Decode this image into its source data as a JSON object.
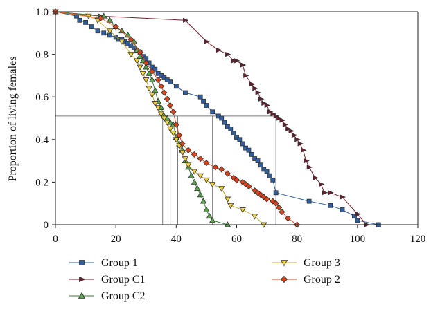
{
  "chart_data": {
    "type": "line",
    "title": "",
    "xlabel": "",
    "ylabel": "Proportion of living females",
    "xlim": [
      0,
      120
    ],
    "ylim": [
      0,
      1.0
    ],
    "x_ticks": [
      "0",
      "20",
      "40",
      "60",
      "80",
      "100",
      "120"
    ],
    "y_ticks": [
      "0",
      "0.2",
      "0.4",
      "0.6",
      "0.8",
      "1.0"
    ],
    "grid": false,
    "legend_placement": "bottom",
    "median_reference": {
      "y": 0.51,
      "x_values": [
        35.5,
        38,
        40.5,
        52,
        73
      ]
    },
    "series": [
      {
        "name": "Group 1",
        "marker": "square",
        "line_color": "#2f5f9e",
        "marker_color": "#2f5f9e",
        "x": [
          0,
          7,
          8,
          10,
          12,
          14,
          16,
          18,
          20,
          21,
          22,
          23,
          24,
          25,
          26,
          27,
          28,
          29,
          30,
          31,
          32,
          33,
          34,
          35,
          36,
          37,
          38,
          40,
          43,
          48,
          49,
          50,
          52,
          54,
          55,
          56,
          57,
          58,
          59,
          60,
          61,
          62,
          63,
          64,
          65,
          66,
          67,
          68,
          69,
          70,
          71,
          72,
          73,
          84,
          91,
          95,
          99,
          100,
          107
        ],
        "y": [
          1.0,
          0.98,
          0.96,
          0.95,
          0.93,
          0.91,
          0.9,
          0.89,
          0.88,
          0.87,
          0.87,
          0.86,
          0.85,
          0.84,
          0.83,
          0.82,
          0.81,
          0.79,
          0.78,
          0.76,
          0.74,
          0.73,
          0.71,
          0.7,
          0.69,
          0.68,
          0.67,
          0.65,
          0.62,
          0.6,
          0.58,
          0.56,
          0.53,
          0.51,
          0.5,
          0.48,
          0.46,
          0.45,
          0.43,
          0.41,
          0.4,
          0.38,
          0.36,
          0.35,
          0.33,
          0.31,
          0.3,
          0.28,
          0.26,
          0.25,
          0.23,
          0.21,
          0.15,
          0.11,
          0.09,
          0.07,
          0.04,
          0.02,
          0.0
        ]
      },
      {
        "name": "Group C1",
        "marker": "triangle-right",
        "line_color": "#7a1f2a",
        "marker_color": "#6b1e2d",
        "x": [
          0,
          15,
          43,
          50,
          54,
          57,
          59,
          60,
          62,
          63,
          65,
          66,
          67,
          68,
          69,
          70,
          71,
          72,
          73,
          74,
          75,
          76,
          77,
          78,
          79,
          80,
          81,
          82,
          83,
          84,
          86,
          88,
          89,
          91,
          95,
          100,
          103
        ],
        "y": [
          1.0,
          0.98,
          0.96,
          0.86,
          0.82,
          0.8,
          0.77,
          0.77,
          0.75,
          0.7,
          0.66,
          0.64,
          0.62,
          0.59,
          0.57,
          0.56,
          0.53,
          0.52,
          0.51,
          0.5,
          0.49,
          0.47,
          0.45,
          0.44,
          0.42,
          0.4,
          0.38,
          0.35,
          0.3,
          0.27,
          0.22,
          0.19,
          0.15,
          0.15,
          0.13,
          0.05,
          0.0
        ]
      },
      {
        "name": "Group C2",
        "marker": "triangle-up",
        "line_color": "#3c7a3a",
        "marker_color": "#5aa64e",
        "x": [
          0,
          16,
          18,
          20,
          22,
          24,
          26,
          27,
          28,
          29,
          30,
          31,
          32,
          33,
          34,
          35,
          36,
          37,
          38,
          39,
          40,
          41,
          42,
          43,
          44,
          45,
          46,
          47,
          48,
          49,
          50,
          51,
          52,
          57
        ],
        "y": [
          1.0,
          0.98,
          0.96,
          0.93,
          0.91,
          0.89,
          0.86,
          0.82,
          0.79,
          0.77,
          0.74,
          0.71,
          0.68,
          0.63,
          0.58,
          0.55,
          0.51,
          0.5,
          0.48,
          0.47,
          0.41,
          0.38,
          0.35,
          0.3,
          0.27,
          0.23,
          0.2,
          0.17,
          0.14,
          0.11,
          0.07,
          0.04,
          0.02,
          0.0
        ]
      },
      {
        "name": "Group 3",
        "marker": "triangle-down",
        "line_color": "#c9a93a",
        "marker_color": "#f0d040",
        "x": [
          0,
          11,
          14,
          18,
          22,
          25,
          27,
          28,
          29,
          30,
          31,
          32,
          33,
          34,
          35,
          36,
          37,
          38,
          39,
          40,
          41,
          42,
          43,
          44,
          46,
          48,
          50,
          52,
          55,
          57,
          58,
          62,
          66,
          69
        ],
        "y": [
          1.0,
          0.98,
          0.96,
          0.91,
          0.86,
          0.8,
          0.77,
          0.74,
          0.71,
          0.68,
          0.64,
          0.61,
          0.57,
          0.55,
          0.52,
          0.5,
          0.48,
          0.45,
          0.43,
          0.4,
          0.37,
          0.34,
          0.31,
          0.28,
          0.25,
          0.23,
          0.21,
          0.19,
          0.17,
          0.12,
          0.09,
          0.07,
          0.04,
          0.0
        ]
      },
      {
        "name": "Group 2",
        "marker": "diamond",
        "line_color": "#e24a1f",
        "marker_color": "#d9431c",
        "x": [
          0,
          15,
          20,
          25,
          28,
          30,
          32,
          34,
          35,
          36,
          37,
          38,
          39,
          40,
          41,
          42,
          44,
          46,
          48,
          50,
          53,
          55,
          57,
          59,
          60,
          62,
          63,
          64,
          66,
          67,
          68,
          69,
          70,
          72,
          73,
          74,
          75,
          77,
          80
        ],
        "y": [
          1.0,
          0.97,
          0.93,
          0.87,
          0.81,
          0.76,
          0.72,
          0.68,
          0.65,
          0.62,
          0.59,
          0.56,
          0.53,
          0.47,
          0.42,
          0.38,
          0.35,
          0.33,
          0.31,
          0.29,
          0.27,
          0.26,
          0.24,
          0.22,
          0.21,
          0.2,
          0.19,
          0.18,
          0.16,
          0.15,
          0.14,
          0.13,
          0.12,
          0.11,
          0.1,
          0.08,
          0.06,
          0.03,
          0.0
        ]
      }
    ],
    "legend": [
      {
        "series": "Group 1",
        "label": "Group 1"
      },
      {
        "series": "Group 3",
        "label": "Group 3"
      },
      {
        "series": "Group C1",
        "label": "Group C1"
      },
      {
        "series": "Group 2",
        "label": "Group 2"
      },
      {
        "series": "Group C2",
        "label": "Group C2"
      }
    ]
  }
}
